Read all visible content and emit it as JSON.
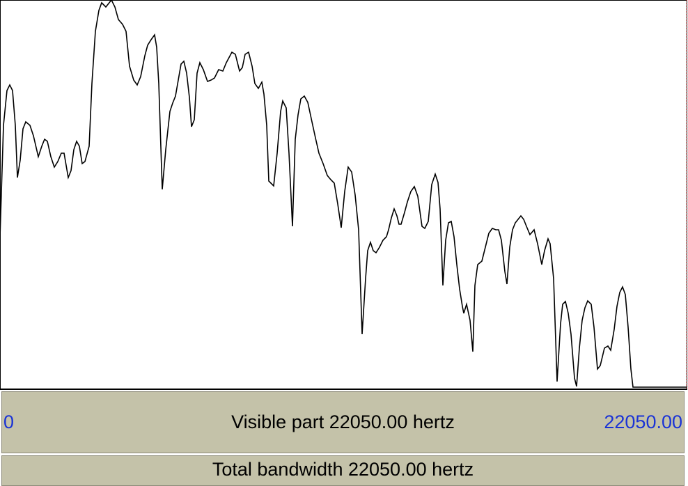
{
  "footer": {
    "start": "0",
    "visible_part": "Visible part 22050.00 hertz",
    "end": "22050.00",
    "total_bandwidth": "Total bandwidth 22050.00 hertz"
  }
}
